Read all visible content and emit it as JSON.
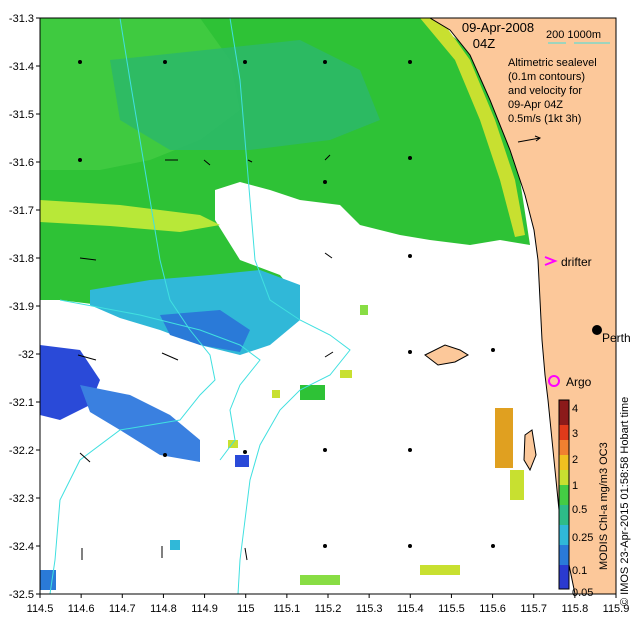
{
  "header": {
    "date": "09-Apr-2008",
    "time": "04Z",
    "isobath_legend": "200  1000m"
  },
  "velocity_note": {
    "lines": [
      "Altimetric sealevel",
      "(0.1m contours)",
      "and velocity for",
      "09-Apr 04Z",
      "0.5m/s (1kt 3h)"
    ]
  },
  "places": {
    "perth": "Perth",
    "argo": "Argo",
    "drifter": "drifter"
  },
  "axes": {
    "x_ticks": [
      "114.5",
      "114.6",
      "114.7",
      "114.8",
      "114.9",
      "115",
      "115.1",
      "115.2",
      "115.3",
      "115.4",
      "115.5",
      "115.6",
      "115.7",
      "115.8",
      "115.9"
    ],
    "y_ticks": [
      "-31.3",
      "-31.4",
      "-31.5",
      "-31.6",
      "-31.7",
      "-31.8",
      "-31.9",
      "-32",
      "-32.1",
      "-32.2",
      "-32.3",
      "-32.4",
      "-32.5"
    ],
    "x_range": [
      114.5,
      115.9
    ],
    "y_range": [
      -32.5,
      -31.3
    ]
  },
  "colorbar": {
    "title": "MODIS Chl-a mg/m3 OC3",
    "ticks": [
      "4",
      "3",
      "2",
      "1",
      "0.5",
      "0.25",
      "0.1",
      "0.05"
    ]
  },
  "credit": "© IMOS 23-Apr-2015 01:58:58 Hobart time",
  "colors": {
    "land": "#fcc89a",
    "isobath": "#40e0e0",
    "drifter": "#ff00ff",
    "argo": "#ff00ff"
  }
}
